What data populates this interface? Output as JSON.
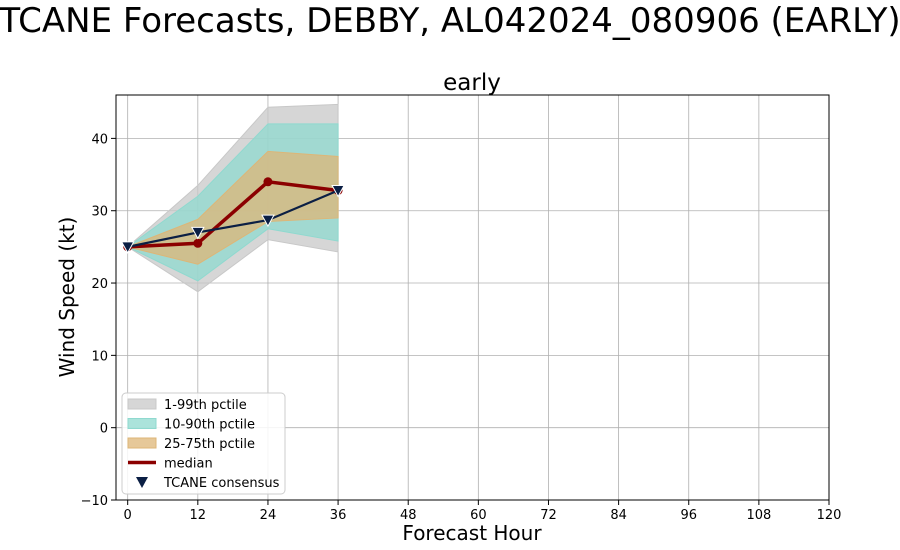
{
  "figure_title": "TCANE Forecasts, DEBBY, AL042024_080906 (EARLY)",
  "chart_data": {
    "type": "line",
    "title": "early",
    "xlabel": "Forecast Hour",
    "ylabel": "Wind Speed (kt)",
    "xlim": [
      -2,
      120
    ],
    "ylim": [
      -10,
      46
    ],
    "xticks": [
      0,
      12,
      24,
      36,
      48,
      60,
      72,
      84,
      96,
      108,
      120
    ],
    "yticks": [
      -10,
      0,
      10,
      20,
      30,
      40
    ],
    "grid": true,
    "legend_position": "lower-left",
    "x": [
      0,
      12,
      24,
      36
    ],
    "bands": [
      {
        "name": "1-99th pctile",
        "color": "#c8c8c8",
        "lower": [
          25,
          18.8,
          26,
          24.3
        ],
        "upper": [
          25,
          33.5,
          44.3,
          44.7
        ]
      },
      {
        "name": "10-90th pctile",
        "color": "#8fd9cf",
        "lower": [
          25,
          20.3,
          27.5,
          25.8
        ],
        "upper": [
          25,
          32,
          42,
          42
        ]
      },
      {
        "name": "25-75th pctile",
        "color": "#ddb677",
        "lower": [
          25,
          22.6,
          28.5,
          29
        ],
        "upper": [
          25,
          28.8,
          38.2,
          37.5
        ]
      }
    ],
    "series": [
      {
        "name": "median",
        "color": "#8b0000",
        "values": [
          25,
          25.5,
          34,
          32.8
        ]
      },
      {
        "name": "TCANE consensus",
        "color": "#0b1f44",
        "values": [
          25,
          27,
          28.7,
          32.8
        ]
      }
    ]
  }
}
